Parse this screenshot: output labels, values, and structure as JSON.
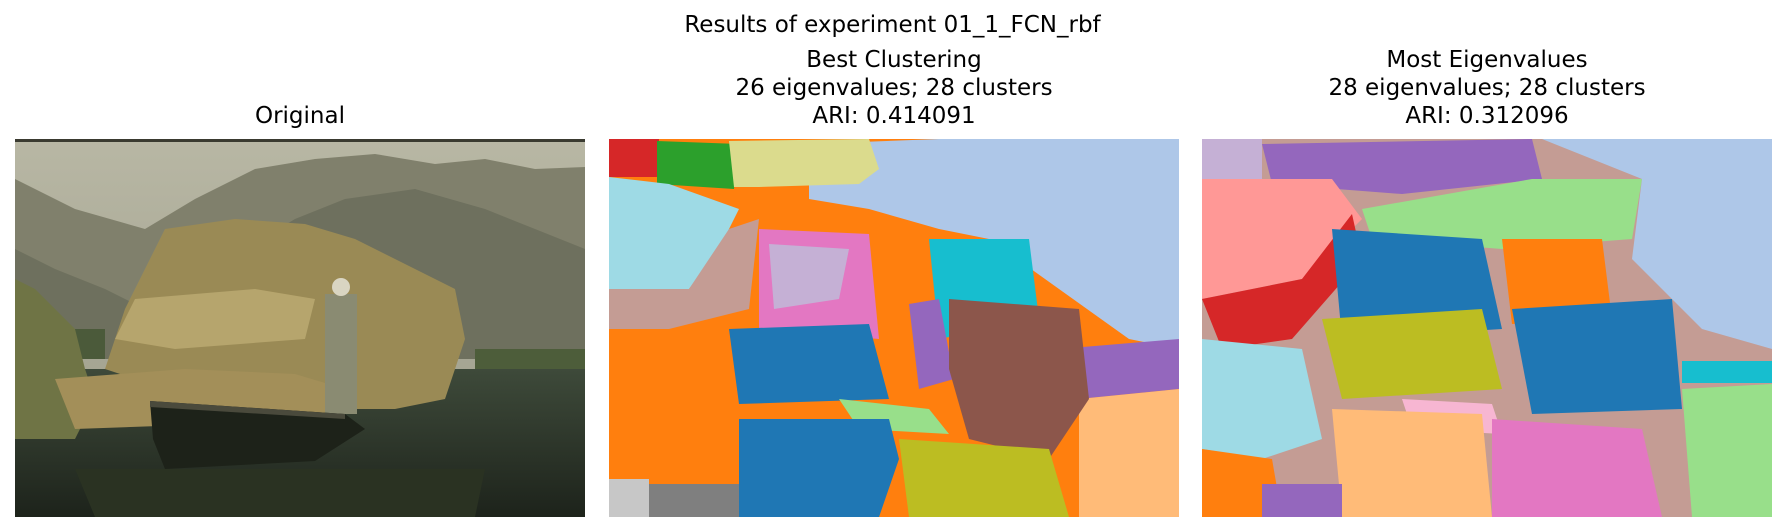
{
  "figure": {
    "suptitle": "Results of experiment 01_1_FCN_rbf"
  },
  "panels": [
    {
      "title_lines": [
        "Original"
      ]
    },
    {
      "title_lines": [
        "Best Clustering",
        "26 eigenvalues; 28 clusters",
        "ARI: 0.414091"
      ]
    },
    {
      "title_lines": [
        "Most Eigenvalues",
        "28 eigenvalues; 28 clusters",
        "ARI: 0.312096"
      ]
    }
  ],
  "colors": {
    "tab_blue": "#1f77b4",
    "tab_orange": "#ff7f0e",
    "tab_green": "#2ca02c",
    "tab_red": "#d62728",
    "tab_purple": "#9467bd",
    "tab_brown": "#8c564b",
    "tab_pink": "#e377c2",
    "tab_gray": "#7f7f7f",
    "tab_olive": "#bcbd22",
    "tab_cyan": "#17becf",
    "light_blue": "#aec7e8",
    "light_orange": "#ffbb78",
    "light_green": "#98df8a",
    "light_red": "#ff9896",
    "light_purple": "#c5b0d5",
    "light_brown": "#c49c94",
    "light_pink": "#f7b6d2",
    "light_gray": "#c7c7c7",
    "light_olive": "#dbdb8d",
    "light_cyan": "#9edae5"
  }
}
